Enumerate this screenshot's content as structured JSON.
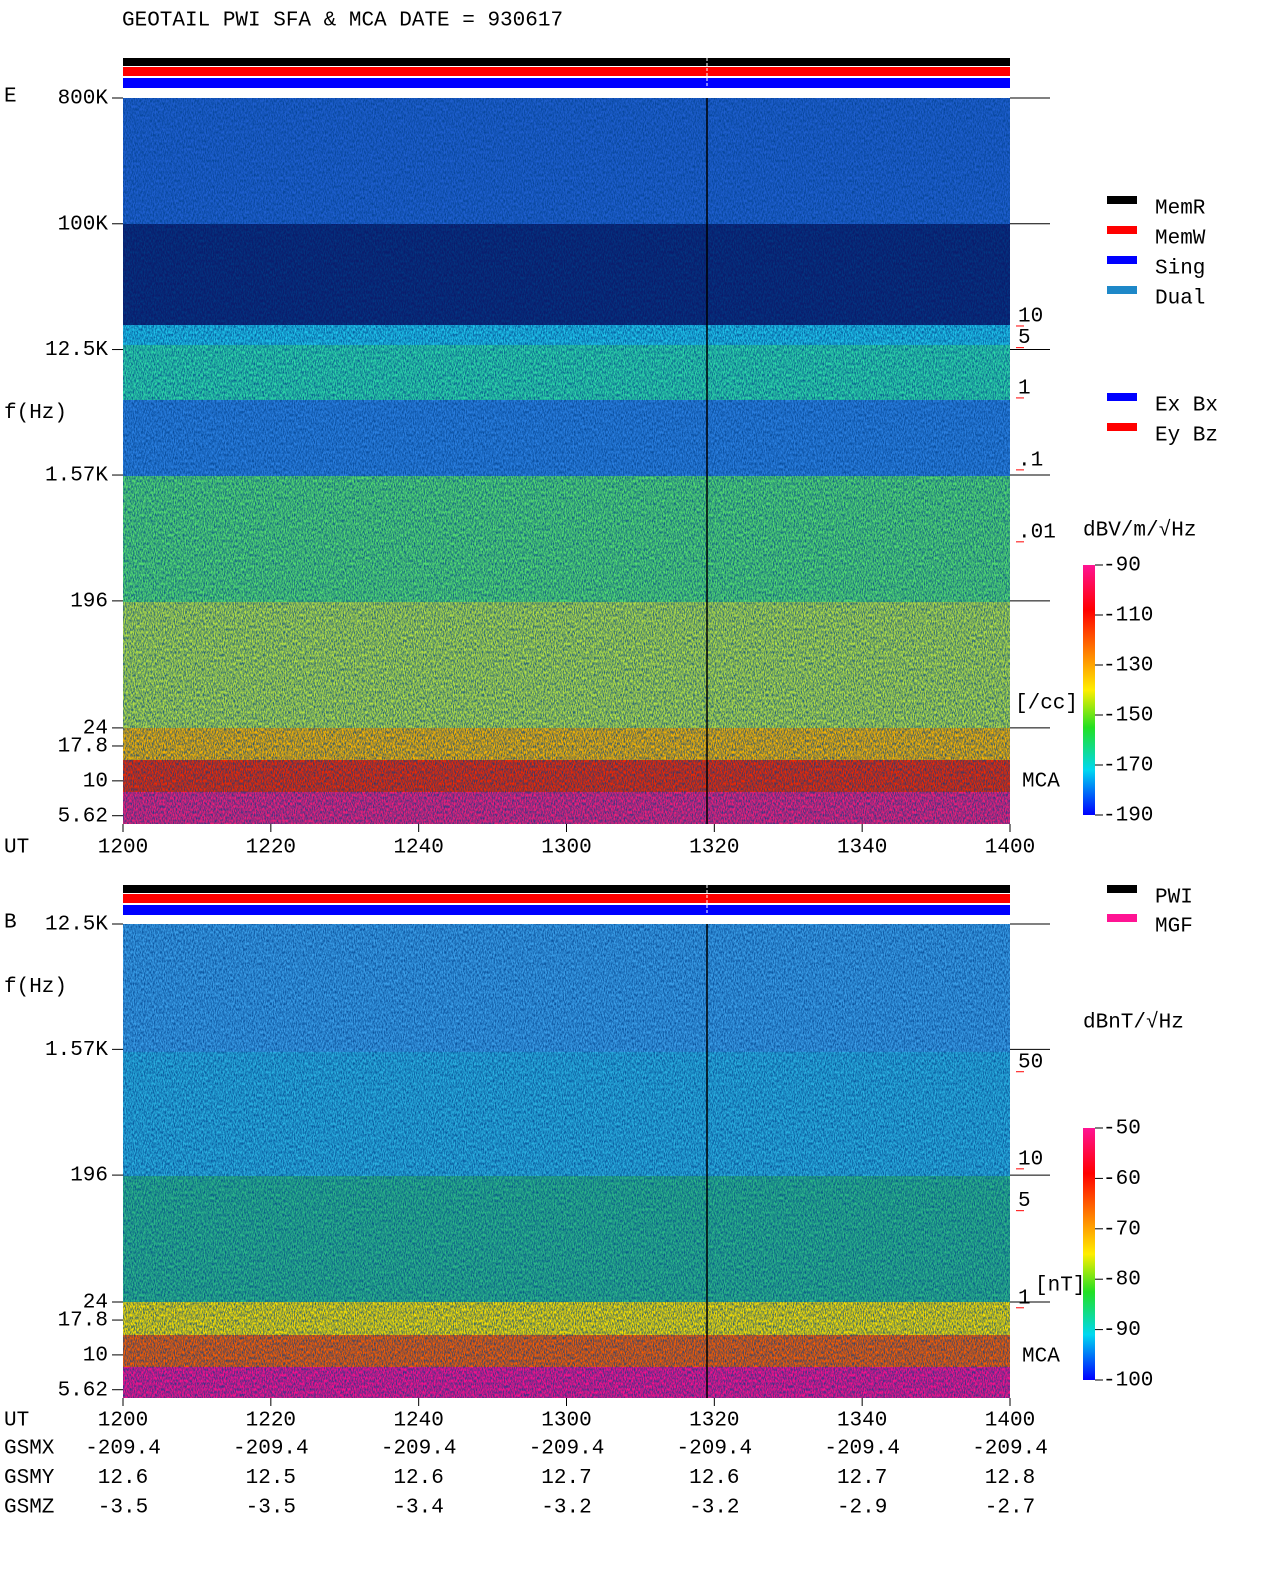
{
  "chart_data": [
    {
      "type": "spectrogram",
      "title": "GEOTAIL  PWI SFA & MCA   DATE = 930617",
      "panel_label": "E",
      "ylabel": "f(Hz)",
      "xlabel": "UT",
      "yscale": "log",
      "ylim": [
        4.9,
        800000
      ],
      "yticks": [
        {
          "value": 800000,
          "label": "800K"
        },
        {
          "value": 100000,
          "label": "100K"
        },
        {
          "value": 12500,
          "label": "12.5K"
        },
        {
          "value": 1570,
          "label": "1.57K"
        },
        196,
        24,
        17.8,
        10,
        5.62
      ],
      "xlim": [
        "1200",
        "1400"
      ],
      "xticks": [
        "1200",
        "1220",
        "1240",
        "1300",
        "1320",
        "1340",
        "1400"
      ],
      "y2label": "[/cc]",
      "y2scale": "log",
      "y2lim": [
        8.7e-07,
        10700
      ],
      "y2color": "#ff0000",
      "y2ticks": [
        10,
        5,
        1,
        {
          "value": 0.1,
          "label": ".1"
        },
        {
          "value": 0.01,
          "label": ".01"
        }
      ],
      "mca_label": "MCA",
      "colorbar": {
        "label": "dBV/m/√Hz",
        "lim": [
          -190,
          -90
        ],
        "ticks": [
          -90,
          -110,
          -130,
          -150,
          -170,
          -190
        ]
      },
      "legend": [
        {
          "name": "MemR",
          "color": "#000000"
        },
        {
          "name": "MemW",
          "color": "#ff0000"
        },
        {
          "name": "Sing",
          "color": "#0000ff"
        },
        {
          "name": "Dual",
          "color": "#1e88c8"
        }
      ],
      "legend2": [
        {
          "name": "Ex Bx",
          "color": "#0000ff"
        },
        {
          "name": "Ey Bz",
          "color": "#ff0000"
        }
      ]
    },
    {
      "type": "spectrogram",
      "panel_label": "B",
      "ylabel": "f(Hz)",
      "xlabel": "UT",
      "yscale": "log",
      "ylim": [
        4.9,
        12500
      ],
      "yticks": [
        {
          "value": 12500,
          "label": "12.5K"
        },
        {
          "value": 1570,
          "label": "1.57K"
        },
        196,
        24,
        17.8,
        10,
        5.62
      ],
      "xlim": [
        "1200",
        "1400"
      ],
      "xticks": [
        "1200",
        "1220",
        "1240",
        "1300",
        "1320",
        "1340",
        "1400"
      ],
      "y2label": "[nT]",
      "y2scale": "log",
      "y2lim": [
        0.19,
        490
      ],
      "y2color": "#ff0000",
      "y2ticks": [
        50,
        10,
        5,
        1
      ],
      "mca_label": "MCA",
      "colorbar": {
        "label": "dBnT/√Hz",
        "lim": [
          -100,
          -50
        ],
        "ticks": [
          -50,
          -60,
          -70,
          -80,
          -90,
          -100
        ]
      },
      "legend": [
        {
          "name": "PWI",
          "color": "#000000"
        },
        {
          "name": "MGF",
          "color": "#ff1493"
        }
      ]
    }
  ],
  "orbit": [
    {
      "name": "GSMX",
      "values": [
        -209.4,
        -209.4,
        -209.4,
        -209.4,
        -209.4,
        -209.4,
        -209.4
      ]
    },
    {
      "name": "GSMY",
      "values": [
        12.6,
        12.5,
        12.6,
        12.7,
        12.6,
        12.7,
        12.8
      ]
    },
    {
      "name": "GSMZ",
      "values": [
        -3.5,
        -3.5,
        -3.4,
        -3.2,
        -3.2,
        -2.9,
        -2.7
      ]
    }
  ]
}
